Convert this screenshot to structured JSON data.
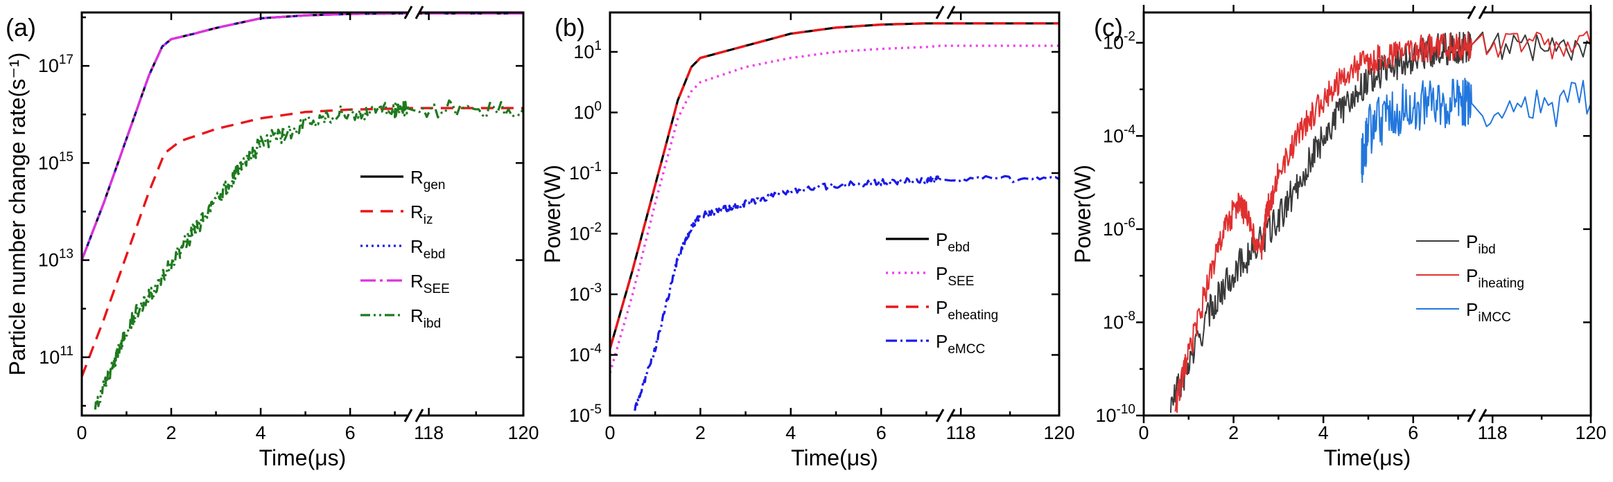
{
  "chart_data": [
    {
      "type": "line",
      "panel_label": "(a)",
      "xlabel": "Time(μs)",
      "ylabel": "Particle number change rate(s⁻¹)",
      "x_scale": "linear with axis break between 7.3 and 117.8",
      "x_segments": [
        [
          0,
          7.3
        ],
        [
          117.8,
          120
        ]
      ],
      "x_ticks": [
        "0",
        "2",
        "4",
        "6",
        "118",
        "120"
      ],
      "y_scale": "log",
      "ylim_exp": [
        9.8,
        18.1
      ],
      "y_ticks": [
        {
          "base": "10",
          "exp": "11",
          "value": 11
        },
        {
          "base": "10",
          "exp": "13",
          "value": 13
        },
        {
          "base": "10",
          "exp": "15",
          "value": 15
        },
        {
          "base": "10",
          "exp": "17",
          "value": 17
        }
      ],
      "legend_position": "center-right",
      "series": [
        {
          "key": "gen",
          "label_main": "R",
          "label_sub": "gen",
          "color": "#000000",
          "dash": "",
          "width": 3.2,
          "noise": 0,
          "x": [
            0,
            0.5,
            1,
            1.5,
            1.8,
            2,
            2.5,
            3,
            4,
            5,
            6,
            7,
            7.3,
            117.8,
            118.5,
            119.5,
            120
          ],
          "y_exp": [
            13,
            14.2,
            15.5,
            16.8,
            17.4,
            17.55,
            17.66,
            17.78,
            17.98,
            18.04,
            18.07,
            18.08,
            18.08,
            18.08,
            18.08,
            18.08,
            18.08
          ]
        },
        {
          "key": "iz",
          "label_main": "R",
          "label_sub": "iz",
          "color": "#e8161a",
          "dash": "18,11",
          "width": 3.4,
          "noise": 0,
          "x": [
            0,
            0.5,
            1,
            1.5,
            1.85,
            2.2,
            3,
            4,
            5,
            6,
            7,
            7.3,
            117.8,
            120
          ],
          "y_exp": [
            10.6,
            11.8,
            13.1,
            14.4,
            15.2,
            15.45,
            15.7,
            15.92,
            16.05,
            16.1,
            16.12,
            16.13,
            16.13,
            16.13
          ]
        },
        {
          "key": "ebd",
          "label_main": "R",
          "label_sub": "ebd",
          "color": "#1a1ae6",
          "dash": "3,5",
          "width": 3.2,
          "noise": 0,
          "x": [
            0,
            0.5,
            1,
            1.5,
            1.8,
            2,
            2.5,
            3,
            4,
            5,
            6,
            7,
            7.3,
            117.8,
            118.5,
            119.5,
            120
          ],
          "y_exp": [
            13,
            14.2,
            15.5,
            16.8,
            17.4,
            17.55,
            17.66,
            17.78,
            17.98,
            18.04,
            18.07,
            18.08,
            18.08,
            18.08,
            18.08,
            18.08,
            18.08
          ]
        },
        {
          "key": "see",
          "label_main": "R",
          "label_sub": "SEE",
          "color": "#e030e0",
          "dash": "22,6,4,6",
          "width": 3.2,
          "noise": 0,
          "x": [
            0,
            0.5,
            1,
            1.5,
            1.8,
            2,
            2.5,
            3,
            4,
            5,
            6,
            7,
            7.3,
            117.8,
            118.5,
            119.5,
            120
          ],
          "y_exp": [
            13,
            14.2,
            15.5,
            16.8,
            17.4,
            17.55,
            17.66,
            17.78,
            17.98,
            18.04,
            18.07,
            18.08,
            18.08,
            18.08,
            18.08,
            18.08,
            18.08
          ]
        },
        {
          "key": "ibd",
          "label_main": "R",
          "label_sub": "ibd",
          "color": "#1e7a1e",
          "dash": "14,5,3,5,3,5",
          "width": 3.2,
          "noise": 0.18,
          "x": [
            0.3,
            0.7,
            1,
            1.5,
            2,
            2.5,
            3,
            3.5,
            4,
            5,
            6,
            7,
            7.3,
            117.8,
            120
          ],
          "y_exp": [
            10.0,
            10.8,
            11.6,
            12.3,
            12.9,
            13.6,
            14.2,
            14.85,
            15.4,
            15.8,
            16.05,
            16.1,
            16.12,
            16.12,
            16.12
          ]
        }
      ]
    },
    {
      "type": "line",
      "panel_label": "(b)",
      "xlabel": "Time(μs)",
      "ylabel": "Power(W)",
      "x_scale": "linear with axis break between 7.3 and 117.8",
      "x_segments": [
        [
          0,
          7.3
        ],
        [
          117.8,
          120
        ]
      ],
      "x_ticks": [
        "0",
        "2",
        "4",
        "6",
        "118",
        "120"
      ],
      "y_scale": "log",
      "ylim_exp": [
        -5,
        1.65
      ],
      "y_ticks": [
        {
          "base": "10",
          "exp": "-5",
          "value": -5
        },
        {
          "base": "10",
          "exp": "-4",
          "value": -4
        },
        {
          "base": "10",
          "exp": "-3",
          "value": -3
        },
        {
          "base": "10",
          "exp": "-2",
          "value": -2
        },
        {
          "base": "10",
          "exp": "-1",
          "value": -1
        },
        {
          "base": "10",
          "exp": "0",
          "value": 0
        },
        {
          "base": "10",
          "exp": "1",
          "value": 1
        }
      ],
      "legend_position": "bottom-right",
      "series": [
        {
          "key": "ebd",
          "label_main": "P",
          "label_sub": "ebd",
          "color": "#000000",
          "dash": "",
          "width": 3.2,
          "noise": 0,
          "x": [
            0,
            0.5,
            1,
            1.5,
            1.8,
            2,
            3,
            4,
            5,
            6,
            7,
            7.3,
            117.8,
            120
          ],
          "y_exp": [
            -3.9,
            -2.6,
            -1.2,
            0.2,
            0.75,
            0.9,
            1.1,
            1.3,
            1.4,
            1.45,
            1.47,
            1.47,
            1.47,
            1.47
          ]
        },
        {
          "key": "see",
          "label_main": "P",
          "label_sub": "SEE",
          "color": "#f040f0",
          "dash": "3,6",
          "width": 3.4,
          "noise": 0,
          "x": [
            0,
            0.5,
            1,
            1.5,
            1.8,
            2,
            3,
            4,
            5,
            6,
            7,
            7.3,
            117.8,
            120
          ],
          "y_exp": [
            -4.3,
            -3,
            -1.5,
            -0.1,
            0.35,
            0.5,
            0.75,
            0.9,
            1.0,
            1.05,
            1.08,
            1.1,
            1.1,
            1.1
          ]
        },
        {
          "key": "eheating",
          "label_main": "P",
          "label_sub": "eheating",
          "color": "#e8161a",
          "dash": "18,11",
          "width": 3.4,
          "noise": 0,
          "x": [
            0,
            0.5,
            1,
            1.5,
            1.8,
            2,
            3,
            4,
            5,
            6,
            7,
            7.3,
            117.8,
            120
          ],
          "y_exp": [
            -3.9,
            -2.6,
            -1.2,
            0.2,
            0.75,
            0.9,
            1.1,
            1.3,
            1.4,
            1.45,
            1.47,
            1.47,
            1.47,
            1.47
          ]
        },
        {
          "key": "emcc",
          "label_main": "P",
          "label_sub": "eMCC",
          "color": "#1a1ae6",
          "dash": "16,5,3,5",
          "width": 3.2,
          "noise": 0.05,
          "x": [
            0.55,
            1,
            1.5,
            1.8,
            2,
            2.5,
            3,
            4,
            5,
            6,
            7,
            7.3,
            117.8,
            120
          ],
          "y_exp": [
            -4.9,
            -3.9,
            -2.4,
            -1.9,
            -1.7,
            -1.6,
            -1.5,
            -1.3,
            -1.2,
            -1.15,
            -1.12,
            -1.1,
            -1.1,
            -1.1
          ]
        }
      ]
    },
    {
      "type": "line",
      "panel_label": "(c)",
      "xlabel": "Time(μs)",
      "ylabel": "Power(W)",
      "x_scale": "linear with axis break between 7.3 and 117.8",
      "x_segments": [
        [
          0,
          7.3
        ],
        [
          117.8,
          120
        ]
      ],
      "x_ticks": [
        "0",
        "2",
        "4",
        "6",
        "118",
        "120"
      ],
      "y_scale": "log",
      "ylim_exp": [
        -10,
        -1.35
      ],
      "y_ticks": [
        {
          "base": "10",
          "exp": "-10",
          "value": -10
        },
        {
          "base": "10",
          "exp": "-8",
          "value": -8
        },
        {
          "base": "10",
          "exp": "-6",
          "value": -6
        },
        {
          "base": "10",
          "exp": "-4",
          "value": -4
        },
        {
          "base": "10",
          "exp": "-2",
          "value": -2
        }
      ],
      "legend_position": "center-right",
      "series": [
        {
          "key": "ibd",
          "label_main": "P",
          "label_sub": "ibd",
          "color": "#3a3a3a",
          "dash": "",
          "width": 2,
          "noise": 0.35,
          "x": [
            0.6,
            1,
            1.5,
            2,
            2.5,
            3,
            3.5,
            4,
            4.5,
            5,
            5.5,
            6,
            6.5,
            7,
            7.3,
            117.8,
            120
          ],
          "y_exp": [
            -9.8,
            -8.9,
            -7.7,
            -6.9,
            -6.4,
            -5.8,
            -4.9,
            -4.0,
            -3.3,
            -2.8,
            -2.5,
            -2.3,
            -2.15,
            -2.1,
            -2.05,
            -2.05,
            -2.05
          ]
        },
        {
          "key": "iheating",
          "label_main": "P",
          "label_sub": "iheating",
          "color": "#e03030",
          "dash": "",
          "width": 2,
          "noise": 0.3,
          "x": [
            0.7,
            1,
            1.5,
            1.8,
            2.1,
            2.3,
            2.6,
            2.75,
            3,
            3.5,
            4,
            4.5,
            5,
            5.5,
            6,
            6.5,
            7,
            7.3,
            117.8,
            120
          ],
          "y_exp": [
            -9.8,
            -8.7,
            -6.9,
            -6.0,
            -5.45,
            -5.7,
            -6.6,
            -5.6,
            -4.8,
            -3.9,
            -3.2,
            -2.7,
            -2.4,
            -2.25,
            -2.15,
            -2.1,
            -2.08,
            -2.05,
            -2.05,
            -2.05
          ]
        },
        {
          "key": "imcc",
          "label_main": "P",
          "label_sub": "iMCC",
          "color": "#2277dd",
          "dash": "",
          "width": 2,
          "noise": 0.55,
          "x": [
            4.85,
            5.0,
            5.5,
            6,
            6.5,
            7,
            7.3,
            117.8,
            120
          ],
          "y_exp": [
            -4.6,
            -3.9,
            -3.5,
            -3.35,
            -3.3,
            -3.3,
            -3.3,
            -3.3,
            -3.3
          ]
        }
      ]
    }
  ]
}
